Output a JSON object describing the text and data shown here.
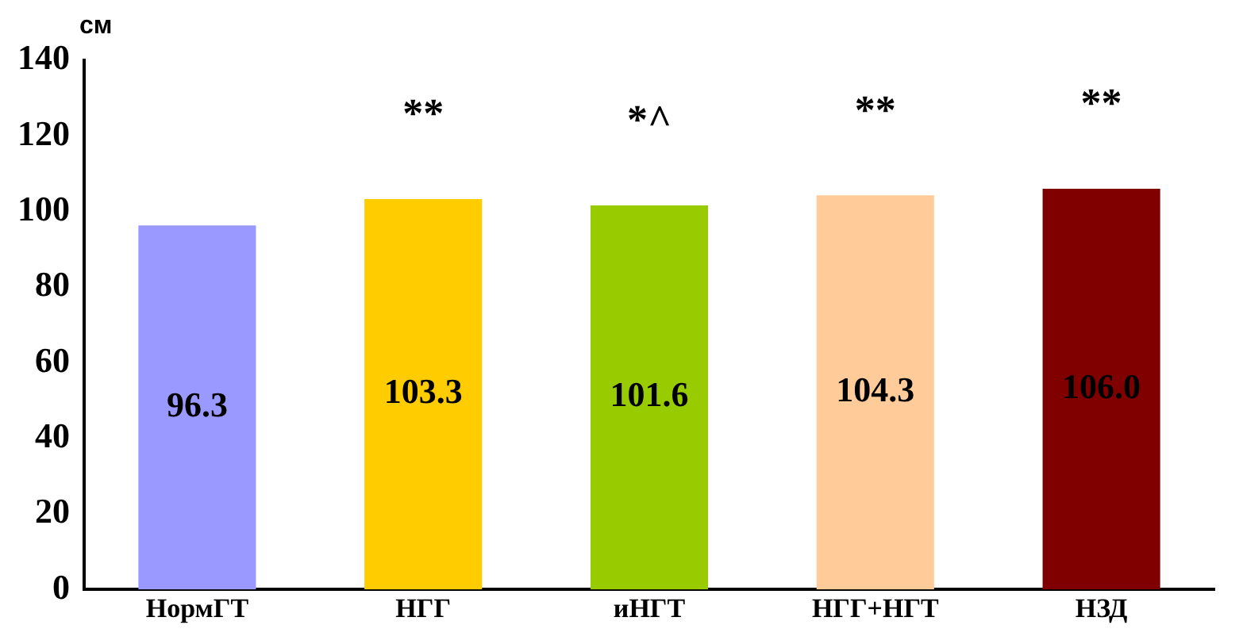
{
  "chart_data": {
    "type": "bar",
    "ylabel": "см",
    "categories": [
      "НормГТ",
      "НГГ",
      "иНГТ",
      "НГГ+НГТ",
      "НЗД"
    ],
    "values": [
      96.3,
      103.3,
      101.6,
      104.3,
      106.0
    ],
    "colors": [
      "#9999ff",
      "#ffcc00",
      "#99cc00",
      "#ffcc99",
      "#800000"
    ],
    "value_labels": [
      "96.3",
      "103.3",
      "101.6",
      "104.3",
      "106.0"
    ],
    "ylim": [
      0,
      140
    ],
    "yticks": [
      0,
      20,
      40,
      60,
      80,
      100,
      120,
      140
    ],
    "grid": false,
    "legend": false,
    "annotations": [
      {
        "text": "**",
        "x": "НГГ",
        "y": 103.3
      },
      {
        "text": "*^",
        "x": "иНГТ",
        "y": 101.6
      },
      {
        "text": "**",
        "x": "НГГ+НГТ",
        "y": 104.3
      },
      {
        "text": "**",
        "x": "НЗД",
        "y": 106.0
      }
    ]
  }
}
